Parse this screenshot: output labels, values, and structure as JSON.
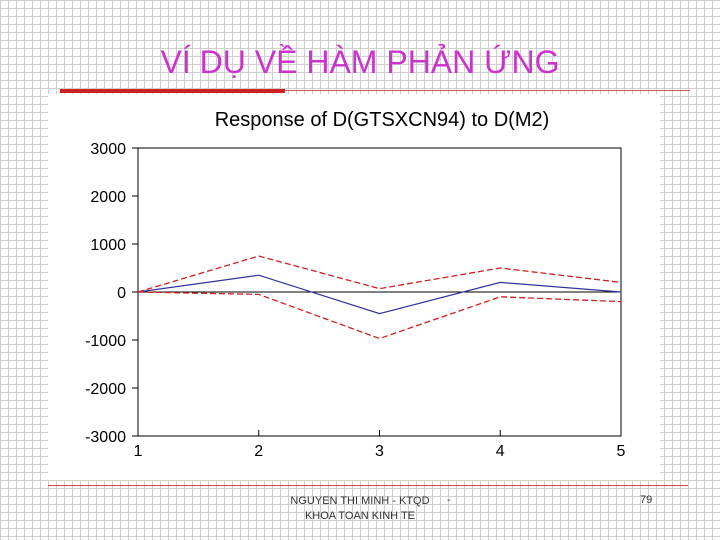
{
  "slide": {
    "title": "VÍ DỤ VỀ HÀM PHẢN ỨNG",
    "footer_line1": "NGUYEN THI MINH - KTQD",
    "footer_line2": "KHOA TOAN KINH TE",
    "footer_dash": "-",
    "page_number": "79"
  },
  "colors": {
    "title": "#cc33cc",
    "response_line": "#333399",
    "band_line": "#cc2222",
    "zero_line": "#000000"
  },
  "chart_data": {
    "type": "line",
    "title": "Response of D(GTSXCN94) to D(M2)",
    "xlabel": "",
    "ylabel": "",
    "categories": [
      "1",
      "2",
      "3",
      "4",
      "5"
    ],
    "x": [
      1,
      2,
      3,
      4,
      5
    ],
    "xlim": [
      1,
      5
    ],
    "ylim": [
      -3000,
      3000
    ],
    "yticks": [
      3000,
      2000,
      1000,
      0,
      -1000,
      -2000,
      -3000
    ],
    "grid": false,
    "legend": "none",
    "series": [
      {
        "values": [
          0,
          350,
          -450,
          200,
          0
        ],
        "style": "solid"
      },
      {
        "values": [
          0,
          750,
          70,
          500,
          200
        ],
        "style": "dashed"
      },
      {
        "values": [
          0,
          -50,
          -970,
          -100,
          -200
        ],
        "style": "dashed"
      }
    ]
  }
}
